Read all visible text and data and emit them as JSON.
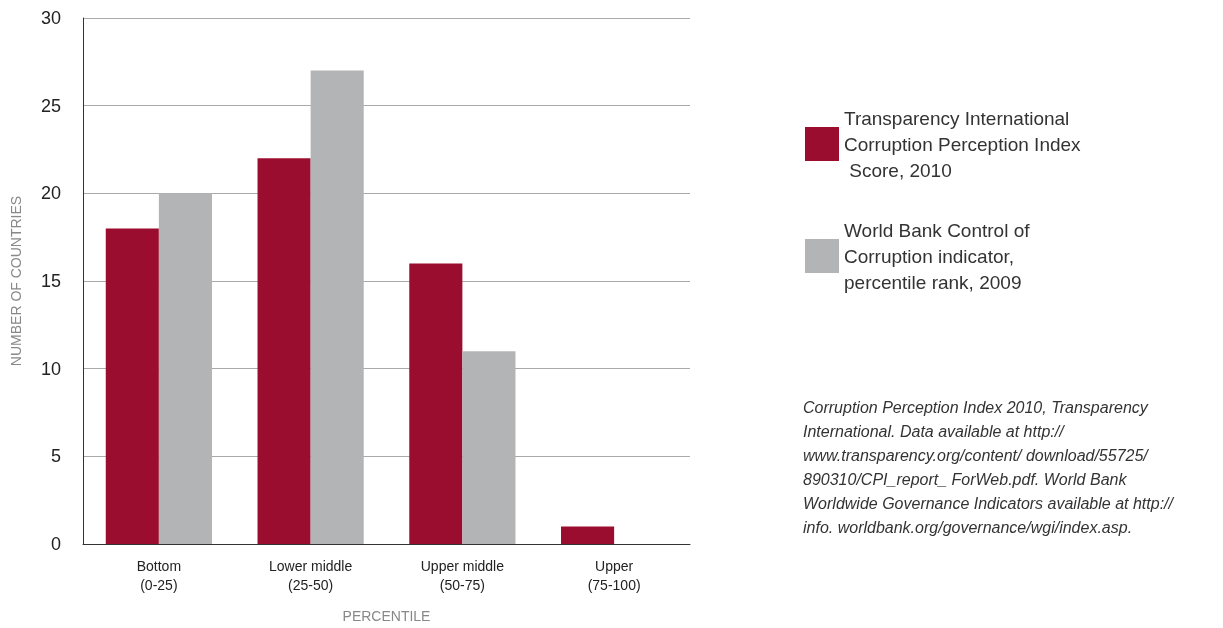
{
  "chart_data": {
    "type": "bar",
    "xlabel": "PERCENTILE",
    "ylabel": "NUMBER OF COUNTRIES",
    "categories": [
      "Bottom\n(0-25)",
      "Lower middle\n(25-50)",
      "Upper middle\n(50-75)",
      "Upper\n(75-100)"
    ],
    "series": [
      {
        "name": "Transparency International Corruption Perception Index Score, 2010",
        "color": "#9b0d2e",
        "values": [
          18,
          22,
          16,
          1
        ]
      },
      {
        "name": "World Bank Control of Corruption indicator, percentile rank, 2009",
        "color": "#b3b4b6",
        "values": [
          20,
          27,
          11,
          0
        ]
      }
    ],
    "ylim": [
      0,
      30
    ],
    "yticks": [
      0,
      5,
      10,
      15,
      20,
      25,
      30
    ],
    "grid": "y",
    "legend": "right",
    "annotations": [
      "Corruption Perception Index 2010, Transparency International. Data available at http://www.transparency.org/content/ download/55725/890310/CPI_report_ ForWeb.pdf. World Bank Worldwide Governance Indicators available at http://info. worldbank.org/governance/wgi/index.asp."
    ]
  }
}
